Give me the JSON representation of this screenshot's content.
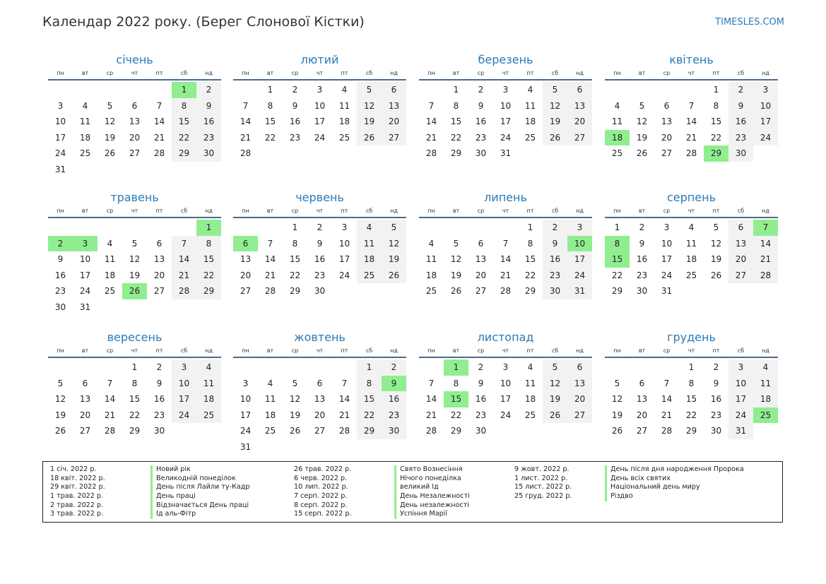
{
  "header": {
    "title": "Календар 2022 року. (Берег Слонової Кістки)",
    "site": "TIMESLES.COM"
  },
  "weekdays": [
    "пн",
    "вт",
    "ср",
    "чт",
    "пт",
    "сб",
    "нд"
  ],
  "months": [
    {
      "name": "січень",
      "offset": 5,
      "days": 31,
      "holidays": [
        1
      ]
    },
    {
      "name": "лютий",
      "offset": 1,
      "days": 28,
      "holidays": []
    },
    {
      "name": "березень",
      "offset": 1,
      "days": 31,
      "holidays": []
    },
    {
      "name": "квітень",
      "offset": 4,
      "days": 30,
      "holidays": [
        18,
        29
      ]
    },
    {
      "name": "травень",
      "offset": 6,
      "days": 31,
      "holidays": [
        1,
        2,
        3,
        26
      ]
    },
    {
      "name": "червень",
      "offset": 2,
      "days": 30,
      "holidays": [
        6
      ]
    },
    {
      "name": "липень",
      "offset": 4,
      "days": 31,
      "holidays": [
        10
      ]
    },
    {
      "name": "серпень",
      "offset": 0,
      "days": 31,
      "holidays": [
        7,
        8,
        15
      ]
    },
    {
      "name": "вересень",
      "offset": 3,
      "days": 30,
      "holidays": []
    },
    {
      "name": "жовтень",
      "offset": 5,
      "days": 31,
      "holidays": [
        9
      ]
    },
    {
      "name": "листопад",
      "offset": 1,
      "days": 30,
      "holidays": [
        1,
        15
      ]
    },
    {
      "name": "грудень",
      "offset": 3,
      "days": 31,
      "holidays": [
        25
      ]
    }
  ],
  "legend": [
    [
      {
        "date": "1 січ. 2022 р.",
        "name": "Новий рік"
      },
      {
        "date": "18 квіт. 2022 р.",
        "name": "Великодній понеділок"
      },
      {
        "date": "29 квіт. 2022 р.",
        "name": "День після Лайли ту-Кадр"
      },
      {
        "date": "1 трав. 2022 р.",
        "name": "День праці"
      },
      {
        "date": "2 трав. 2022 р.",
        "name": "Відзначається День праці"
      },
      {
        "date": "3 трав. 2022 р.",
        "name": "Ід аль-Фітр"
      }
    ],
    [
      {
        "date": "26 трав. 2022 р.",
        "name": "Свято Вознесіння"
      },
      {
        "date": "6 черв. 2022 р.",
        "name": "Нічого понеділка"
      },
      {
        "date": "10 лип. 2022 р.",
        "name": "великий Ід"
      },
      {
        "date": "7 серп. 2022 р.",
        "name": "День Незалежності"
      },
      {
        "date": "8 серп. 2022 р.",
        "name": "День незалежності"
      },
      {
        "date": "15 серп. 2022 р.",
        "name": "Успіння Марії"
      }
    ],
    [
      {
        "date": "9 жовт. 2022 р.",
        "name": "День після дня народження Пророка"
      },
      {
        "date": "1 лист. 2022 р.",
        "name": "День всіх святих"
      },
      {
        "date": "15 лист. 2022 р.",
        "name": "Національний день миру"
      },
      {
        "date": "25 груд. 2022 р.",
        "name": "Різдво"
      }
    ]
  ]
}
